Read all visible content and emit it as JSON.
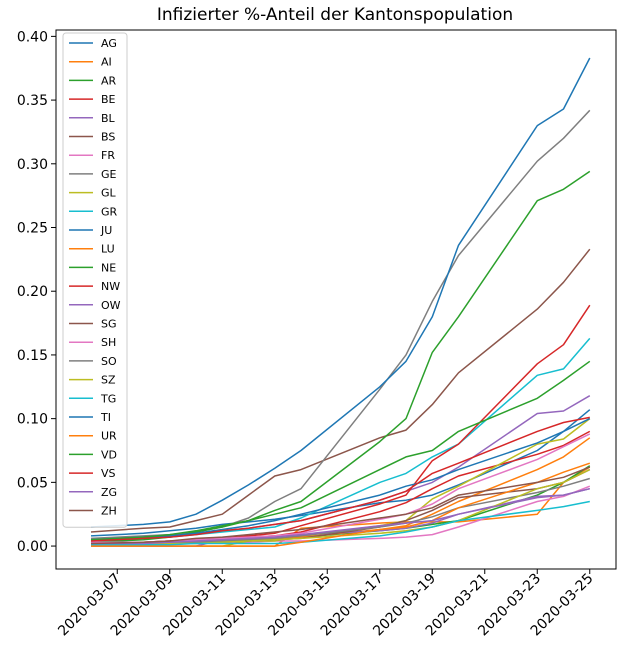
{
  "chart_data": {
    "type": "line",
    "title": "Infizierter %-Anteil der Kantonspopulation",
    "xlabel": "",
    "ylabel": "",
    "x_tick_labels": [
      "2020-03-07",
      "2020-03-09",
      "2020-03-11",
      "2020-03-13",
      "2020-03-15",
      "2020-03-17",
      "2020-03-19",
      "2020-03-21",
      "2020-03-23",
      "2020-03-25"
    ],
    "y_tick_labels": [
      "0.00",
      "0.05",
      "0.10",
      "0.15",
      "0.20",
      "0.25",
      "0.30",
      "0.35",
      "0.40"
    ],
    "ylim": [
      -0.018,
      0.405
    ],
    "xlim": [
      "2020-03-04T16:00",
      "2020-03-26T00:00"
    ],
    "legend_position": "upper left",
    "grid": false,
    "x": [
      "2020-03-06",
      "2020-03-08",
      "2020-03-09",
      "2020-03-10",
      "2020-03-11",
      "2020-03-12",
      "2020-03-13",
      "2020-03-14",
      "2020-03-17",
      "2020-03-18",
      "2020-03-19",
      "2020-03-20",
      "2020-03-23",
      "2020-03-24",
      "2020-03-25"
    ],
    "series": [
      {
        "name": "AG",
        "color": "#1f77b4",
        "values": [
          0.008,
          0.01,
          0.012,
          0.014,
          0.017,
          0.019,
          0.021,
          0.024,
          0.034,
          0.036,
          0.04,
          0.048,
          0.075,
          0.09,
          0.107
        ]
      },
      {
        "name": "AI",
        "color": "#ff7f0e",
        "values": [
          0.0,
          0.0,
          0.0,
          0.0,
          0.0,
          0.0,
          0.0,
          0.014,
          0.018,
          0.019,
          0.019,
          0.019,
          0.025,
          0.05,
          0.062
        ]
      },
      {
        "name": "AR",
        "color": "#2ca02c",
        "values": [
          0.001,
          0.002,
          0.002,
          0.003,
          0.004,
          0.005,
          0.006,
          0.007,
          0.012,
          0.014,
          0.017,
          0.02,
          0.04,
          0.05,
          0.063
        ]
      },
      {
        "name": "BE",
        "color": "#d62728",
        "values": [
          0.002,
          0.003,
          0.004,
          0.005,
          0.006,
          0.007,
          0.008,
          0.011,
          0.027,
          0.034,
          0.045,
          0.055,
          0.072,
          0.079,
          0.09
        ]
      },
      {
        "name": "BL",
        "color": "#9467bd",
        "values": [
          0.005,
          0.007,
          0.008,
          0.01,
          0.012,
          0.014,
          0.017,
          0.02,
          0.036,
          0.043,
          0.05,
          0.062,
          0.104,
          0.106,
          0.118
        ]
      },
      {
        "name": "BS",
        "color": "#8c564b",
        "values": [
          0.011,
          0.014,
          0.015,
          0.02,
          0.025,
          0.04,
          0.055,
          0.06,
          0.085,
          0.091,
          0.111,
          0.136,
          0.186,
          0.207,
          0.233
        ]
      },
      {
        "name": "FR",
        "color": "#e377c2",
        "values": [
          0.002,
          0.002,
          0.002,
          0.002,
          0.003,
          0.003,
          0.004,
          0.004,
          0.006,
          0.007,
          0.009,
          0.015,
          0.035,
          0.039,
          0.047
        ]
      },
      {
        "name": "GE",
        "color": "#7f7f7f",
        "values": [
          0.006,
          0.008,
          0.009,
          0.011,
          0.015,
          0.022,
          0.035,
          0.045,
          0.123,
          0.15,
          0.192,
          0.228,
          0.302,
          0.32,
          0.342
        ]
      },
      {
        "name": "GL",
        "color": "#bcbd22",
        "values": [
          0.0,
          0.0,
          0.0,
          0.0,
          0.0,
          0.004,
          0.004,
          0.008,
          0.016,
          0.02,
          0.037,
          0.047,
          0.08,
          0.084,
          0.1
        ]
      },
      {
        "name": "GR",
        "color": "#17becf",
        "values": [
          0.004,
          0.006,
          0.007,
          0.009,
          0.011,
          0.013,
          0.015,
          0.022,
          0.05,
          0.057,
          0.07,
          0.08,
          0.134,
          0.139,
          0.163
        ]
      },
      {
        "name": "JU",
        "color": "#1f77b4",
        "values": [
          0.015,
          0.017,
          0.019,
          0.025,
          0.036,
          0.048,
          0.061,
          0.075,
          0.125,
          0.145,
          0.18,
          0.236,
          0.33,
          0.343,
          0.383
        ]
      },
      {
        "name": "LU",
        "color": "#ff7f0e",
        "values": [
          0.001,
          0.002,
          0.002,
          0.003,
          0.004,
          0.005,
          0.006,
          0.007,
          0.013,
          0.016,
          0.025,
          0.035,
          0.06,
          0.07,
          0.085
        ]
      },
      {
        "name": "NE",
        "color": "#2ca02c",
        "values": [
          0.003,
          0.005,
          0.007,
          0.011,
          0.015,
          0.02,
          0.028,
          0.035,
          0.082,
          0.1,
          0.152,
          0.18,
          0.271,
          0.28,
          0.294
        ]
      },
      {
        "name": "NW",
        "color": "#d62728",
        "values": [
          0.002,
          0.003,
          0.004,
          0.005,
          0.006,
          0.008,
          0.01,
          0.016,
          0.033,
          0.04,
          0.067,
          0.08,
          0.143,
          0.158,
          0.189
        ]
      },
      {
        "name": "OW",
        "color": "#9467bd",
        "values": [
          0.0,
          0.0,
          0.0,
          0.0,
          0.005,
          0.006,
          0.008,
          0.009,
          0.012,
          0.014,
          0.018,
          0.025,
          0.039,
          0.04,
          0.045
        ]
      },
      {
        "name": "SG",
        "color": "#8c564b",
        "values": [
          0.001,
          0.001,
          0.002,
          0.002,
          0.003,
          0.004,
          0.005,
          0.006,
          0.015,
          0.02,
          0.028,
          0.038,
          0.045,
          0.05,
          0.06
        ]
      },
      {
        "name": "SH",
        "color": "#e377c2",
        "values": [
          0.003,
          0.003,
          0.004,
          0.005,
          0.006,
          0.007,
          0.008,
          0.01,
          0.021,
          0.025,
          0.033,
          0.045,
          0.068,
          0.078,
          0.088
        ]
      },
      {
        "name": "SO",
        "color": "#7f7f7f",
        "values": [
          0.001,
          0.002,
          0.002,
          0.003,
          0.004,
          0.005,
          0.006,
          0.008,
          0.015,
          0.018,
          0.023,
          0.03,
          0.042,
          0.047,
          0.053
        ]
      },
      {
        "name": "SZ",
        "color": "#bcbd22",
        "values": [
          0.001,
          0.001,
          0.002,
          0.002,
          0.003,
          0.004,
          0.005,
          0.006,
          0.01,
          0.012,
          0.015,
          0.02,
          0.045,
          0.05,
          0.06
        ]
      },
      {
        "name": "TG",
        "color": "#17becf",
        "values": [
          0.001,
          0.001,
          0.001,
          0.002,
          0.002,
          0.002,
          0.002,
          0.003,
          0.008,
          0.011,
          0.015,
          0.02,
          0.028,
          0.031,
          0.035
        ]
      },
      {
        "name": "TI",
        "color": "#1f77b4",
        "values": [
          0.005,
          0.007,
          0.008,
          0.01,
          0.013,
          0.016,
          0.02,
          0.025,
          0.04,
          0.047,
          0.052,
          0.06,
          0.081,
          0.09,
          0.1
        ]
      },
      {
        "name": "UR",
        "color": "#ff7f0e",
        "values": [
          0.0,
          0.0,
          0.0,
          0.0,
          0.0,
          0.0,
          0.0,
          0.003,
          0.013,
          0.015,
          0.02,
          0.03,
          0.05,
          0.058,
          0.065
        ]
      },
      {
        "name": "VD",
        "color": "#2ca02c",
        "values": [
          0.005,
          0.007,
          0.009,
          0.012,
          0.016,
          0.02,
          0.025,
          0.03,
          0.06,
          0.07,
          0.075,
          0.09,
          0.116,
          0.13,
          0.145
        ]
      },
      {
        "name": "VS",
        "color": "#d62728",
        "values": [
          0.004,
          0.006,
          0.007,
          0.009,
          0.012,
          0.014,
          0.017,
          0.02,
          0.036,
          0.043,
          0.057,
          0.065,
          0.09,
          0.097,
          0.101
        ]
      },
      {
        "name": "ZG",
        "color": "#9467bd",
        "values": [
          0.002,
          0.002,
          0.003,
          0.004,
          0.005,
          0.006,
          0.007,
          0.009,
          0.016,
          0.018,
          0.02,
          0.025,
          0.038,
          0.04,
          0.045
        ]
      },
      {
        "name": "ZH",
        "color": "#8c564b",
        "values": [
          0.002,
          0.003,
          0.004,
          0.006,
          0.007,
          0.009,
          0.011,
          0.013,
          0.022,
          0.025,
          0.03,
          0.04,
          0.05,
          0.054,
          0.062
        ]
      }
    ]
  }
}
